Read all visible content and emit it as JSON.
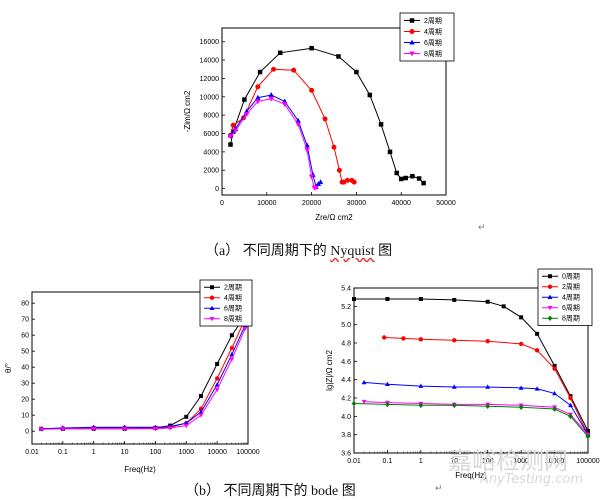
{
  "captions": {
    "a_label": "（a）",
    "a_text": "不同周期下的 ",
    "a_word": "Nyquist",
    "a_tail": " 图",
    "b_label": "（b）",
    "b_text": "不同周期下的 bode 图"
  },
  "watermark": {
    "cn": "嘉峪检测网",
    "en": "AnyTesting.com"
  },
  "palette": [
    "#000000",
    "#ff0000",
    "#0000ff",
    "#ff00ff",
    "#008000"
  ],
  "chart_data": [
    {
      "id": "nyquist",
      "type": "line",
      "xlabel": "Zre/Ω cm2",
      "ylabel": "-Zim/Ω cm2",
      "xlim": [
        0,
        50000
      ],
      "ylim": [
        -700,
        17500
      ],
      "xticks": [
        0,
        10000,
        20000,
        30000,
        40000,
        50000
      ],
      "yticks": [
        0,
        2000,
        4000,
        6000,
        8000,
        10000,
        12000,
        14000,
        16000
      ],
      "legend": [
        "2周期",
        "4周期",
        "6周期",
        "8周期"
      ],
      "series": [
        {
          "name": "2周期",
          "marker": "square",
          "x": [
            1900,
            2500,
            5000,
            8500,
            13000,
            20000,
            26000,
            30000,
            33000,
            35500,
            37500,
            39000,
            40000,
            41000,
            42500,
            44000,
            45000
          ],
          "y": [
            4800,
            6200,
            9700,
            12700,
            14800,
            15300,
            14400,
            12700,
            10200,
            7000,
            4000,
            1700,
            1050,
            1150,
            1350,
            1100,
            600
          ]
        },
        {
          "name": "4周期",
          "marker": "circle",
          "x": [
            1900,
            2500,
            4800,
            8000,
            11500,
            16000,
            20000,
            23000,
            25000,
            26200,
            26800,
            27200,
            28000,
            29000,
            29500
          ],
          "y": [
            5800,
            6900,
            7700,
            11100,
            13000,
            12900,
            10700,
            7600,
            4500,
            2000,
            700,
            700,
            900,
            900,
            700
          ]
        },
        {
          "name": "6周期",
          "marker": "triangle",
          "x": [
            1900,
            3000,
            5500,
            8000,
            11000,
            14000,
            17000,
            19000,
            20300,
            21000,
            21500,
            22000
          ],
          "y": [
            5800,
            6500,
            8400,
            9900,
            10200,
            9500,
            7400,
            4700,
            1500,
            200,
            500,
            700
          ]
        },
        {
          "name": "8周期",
          "marker": "triangledown",
          "x": [
            1900,
            3000,
            5500,
            8000,
            11000,
            14000,
            17000,
            19000,
            20000,
            20600,
            21000
          ],
          "y": [
            5700,
            6300,
            8100,
            9500,
            9800,
            9200,
            7000,
            4200,
            1300,
            100,
            100
          ]
        }
      ]
    },
    {
      "id": "bode-phase",
      "type": "line",
      "xscale": "log",
      "xlabel": "Freq(Hz)",
      "ylabel": "θ/°",
      "xlim": [
        0.01,
        100000
      ],
      "ylim": [
        -8,
        87
      ],
      "xticks": [
        0.01,
        0.1,
        1,
        10,
        100,
        1000,
        10000,
        100000
      ],
      "xtick_labels": [
        "0.01",
        "0.1",
        "1",
        "10",
        "100",
        "1000",
        "10000",
        "100000"
      ],
      "yticks": [
        0,
        10,
        20,
        30,
        40,
        50,
        60,
        70,
        80
      ],
      "legend": [
        "2周期",
        "4周期",
        "6周期",
        "8周期"
      ],
      "series": [
        {
          "name": "2周期",
          "marker": "square",
          "x": [
            0.02,
            0.1,
            1,
            10,
            100,
            300,
            1000,
            3000,
            10000,
            30000,
            80000
          ],
          "y": [
            1.5,
            1.5,
            1.5,
            1.5,
            2,
            3.5,
            9,
            22,
            42,
            60,
            72
          ]
        },
        {
          "name": "4周期",
          "marker": "circle",
          "x": [
            0.02,
            0.1,
            1,
            10,
            100,
            300,
            1000,
            3000,
            10000,
            30000,
            80000
          ],
          "y": [
            1.5,
            1.8,
            2.2,
            2.2,
            2,
            2.5,
            5,
            14,
            33,
            52,
            70
          ]
        },
        {
          "name": "6周期",
          "marker": "triangle",
          "x": [
            0.02,
            0.1,
            1,
            10,
            100,
            300,
            1000,
            3000,
            10000,
            30000,
            80000
          ],
          "y": [
            1.5,
            2,
            2.5,
            2.5,
            2.5,
            3,
            5,
            12,
            29,
            48,
            66
          ]
        },
        {
          "name": "8周期",
          "marker": "triangledown",
          "x": [
            0.02,
            0.1,
            1,
            10,
            100,
            300,
            1000,
            3000,
            10000,
            30000,
            80000
          ],
          "y": [
            1.2,
            1.5,
            1.5,
            1.5,
            1.5,
            2,
            3.5,
            10,
            26,
            45,
            64
          ]
        }
      ]
    },
    {
      "id": "bode-modulus",
      "type": "line",
      "xscale": "log",
      "xlabel": "Freq(Hz)",
      "ylabel": "lg|Z|/Ω cm2",
      "xlim": [
        0.01,
        100000
      ],
      "ylim": [
        3.6,
        5.4
      ],
      "xticks": [
        0.01,
        0.1,
        1,
        10,
        100,
        1000,
        10000,
        100000
      ],
      "xtick_labels": [
        "0.01",
        "0.1",
        "1",
        "10",
        "100",
        "1000",
        "10000",
        "100000"
      ],
      "yticks": [
        3.6,
        3.8,
        4.0,
        4.2,
        4.4,
        4.6,
        4.8,
        5.0,
        5.2,
        5.4
      ],
      "ytick_labels": [
        "3.6",
        "3.8",
        "4.0",
        "4.2",
        "4.4",
        "4.6",
        "4.8",
        "5.0",
        "5.2",
        "5.4"
      ],
      "legend": [
        "0周期",
        "2周期",
        "4周期",
        "6周期",
        "8周期"
      ],
      "series": [
        {
          "name": "0周期",
          "marker": "square",
          "x": [
            0.01,
            0.1,
            1,
            10,
            100,
            300,
            1000,
            3000,
            10000,
            30000,
            100000
          ],
          "y": [
            5.28,
            5.28,
            5.28,
            5.27,
            5.25,
            5.2,
            5.08,
            4.9,
            4.55,
            4.22,
            3.84
          ]
        },
        {
          "name": "2周期",
          "marker": "circle",
          "x": [
            0.08,
            0.3,
            1,
            10,
            100,
            1000,
            3000,
            10000,
            30000,
            100000
          ],
          "y": [
            4.86,
            4.85,
            4.84,
            4.83,
            4.82,
            4.79,
            4.72,
            4.52,
            4.2,
            3.8
          ]
        },
        {
          "name": "4周期",
          "marker": "triangle",
          "x": [
            0.02,
            0.1,
            1,
            10,
            100,
            1000,
            3000,
            10000,
            30000,
            100000
          ],
          "y": [
            4.37,
            4.35,
            4.33,
            4.32,
            4.32,
            4.31,
            4.3,
            4.25,
            4.12,
            3.8
          ]
        },
        {
          "name": "6周期",
          "marker": "triangledown",
          "x": [
            0.02,
            0.1,
            1,
            10,
            100,
            1000,
            10000,
            30000,
            100000
          ],
          "y": [
            4.16,
            4.15,
            4.14,
            4.13,
            4.13,
            4.12,
            4.1,
            4.02,
            3.8
          ]
        },
        {
          "name": "8周期",
          "marker": "diamond",
          "x": [
            0.01,
            0.1,
            1,
            10,
            100,
            1000,
            10000,
            30000,
            100000
          ],
          "y": [
            4.14,
            4.13,
            4.12,
            4.12,
            4.11,
            4.1,
            4.08,
            4.0,
            3.78
          ]
        }
      ]
    }
  ]
}
